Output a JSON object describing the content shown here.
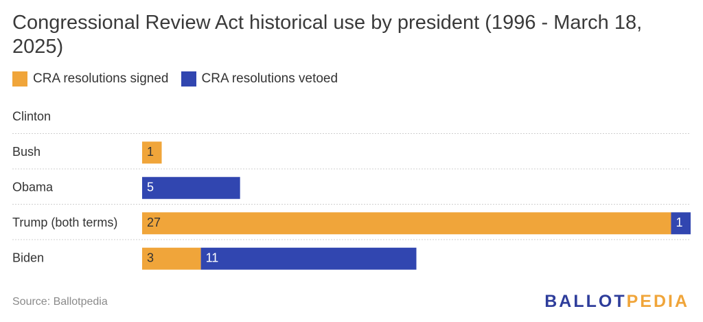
{
  "title": "Congressional Review Act historical use by president (1996 - March 18, 2025)",
  "legend": {
    "signed_label": "CRA resolutions signed",
    "vetoed_label": "CRA resolutions vetoed"
  },
  "colors": {
    "signed": "#f0a53a",
    "vetoed": "#3146b0",
    "gridline": "#cfcfcf",
    "text": "#333333"
  },
  "chart_data": {
    "type": "bar",
    "orientation": "horizontal",
    "stacked": true,
    "categories": [
      "Clinton",
      "Bush",
      "Obama",
      "Trump (both terms)",
      "Biden"
    ],
    "series": [
      {
        "name": "CRA resolutions signed",
        "values": [
          0,
          1,
          0,
          27,
          3
        ]
      },
      {
        "name": "CRA resolutions vetoed",
        "values": [
          0,
          0,
          5,
          1,
          11
        ]
      }
    ],
    "xlim": [
      0,
      28
    ],
    "grid": false,
    "legend_position": "top-left",
    "data_labels": true
  },
  "footer": {
    "source": "Source: Ballotpedia",
    "logo_part1": "BALLOT",
    "logo_part2": "PEDIA"
  }
}
